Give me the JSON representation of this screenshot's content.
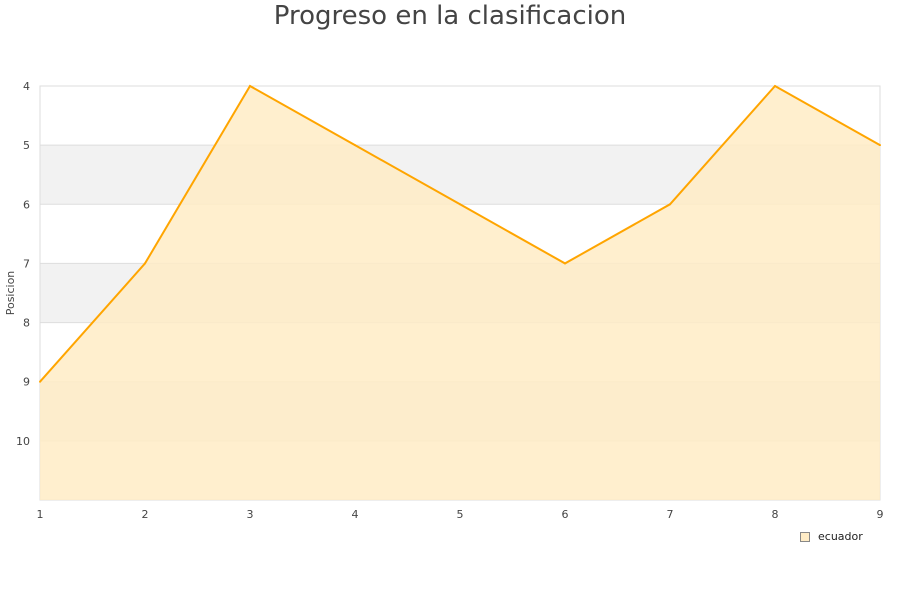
{
  "chart_data": {
    "type": "area",
    "title": "Progreso en la clasificacion",
    "xlabel": "",
    "ylabel": "Posicion",
    "x": [
      1,
      2,
      3,
      4,
      5,
      6,
      7,
      8,
      9
    ],
    "series": [
      {
        "name": "ecuador",
        "values": [
          9,
          7,
          4,
          5,
          6,
          7,
          6,
          4,
          5
        ],
        "color": "#ffa500",
        "fill": "#ffecc6"
      }
    ],
    "xlim": [
      1,
      9
    ],
    "ylim": [
      4,
      11
    ],
    "y_reversed": true,
    "yticks": [
      4,
      5,
      6,
      7,
      8,
      9,
      10
    ],
    "xticks": [
      1,
      2,
      3,
      4,
      5,
      6,
      7,
      8,
      9
    ],
    "band_color": "#f2f2f2",
    "legend": "bottom-right"
  }
}
